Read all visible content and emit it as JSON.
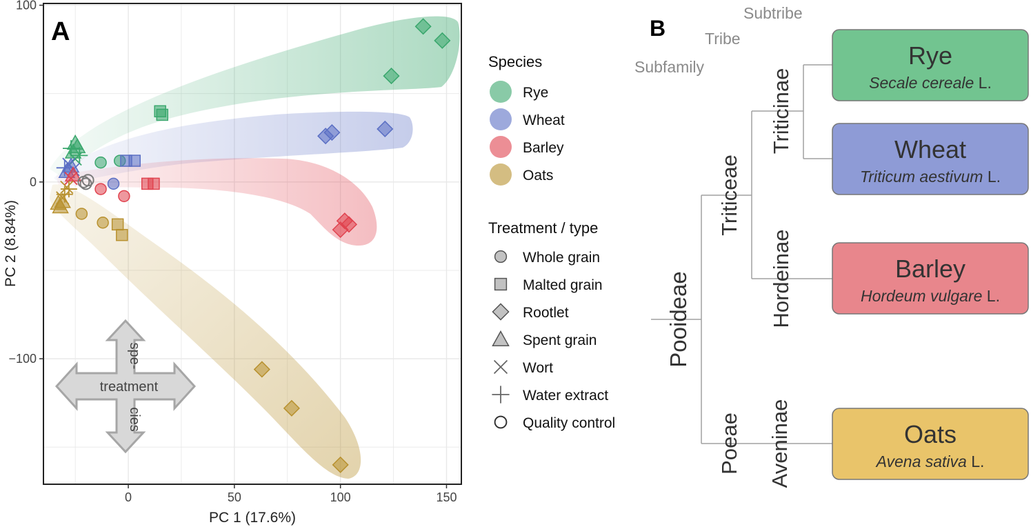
{
  "colors": {
    "rye": "#3aa76d",
    "wheat": "#5b6fc4",
    "barley": "#e0434f",
    "oats": "#b8912f",
    "qc": "#7a7a7a",
    "rye_box": "#72c490",
    "wheat_box": "#8e9bd6",
    "barley_box": "#e8868c",
    "oats_box": "#e9c46a"
  },
  "panel_a": {
    "label": "A",
    "arrow": {
      "top": "spe-",
      "middle": "treatment",
      "bottom": "cies"
    },
    "legend": {
      "species_title": "Species",
      "species": [
        {
          "name": "Rye",
          "color_key": "rye"
        },
        {
          "name": "Wheat",
          "color_key": "wheat"
        },
        {
          "name": "Barley",
          "color_key": "barley"
        },
        {
          "name": "Oats",
          "color_key": "oats"
        }
      ],
      "treatment_title": "Treatment / type",
      "treatments": [
        {
          "name": "Whole grain",
          "shape": "circle"
        },
        {
          "name": "Malted grain",
          "shape": "square"
        },
        {
          "name": "Rootlet",
          "shape": "diamond"
        },
        {
          "name": "Spent grain",
          "shape": "triangle"
        },
        {
          "name": "Wort",
          "shape": "cross"
        },
        {
          "name": "Water extract",
          "shape": "plus"
        },
        {
          "name": "Quality control",
          "shape": "open-circle"
        }
      ]
    }
  },
  "chart_data": {
    "type": "scatter",
    "title": "",
    "xlabel": "PC 1 (17.6%)",
    "ylabel": "PC 2 (8.84%)",
    "xlim": [
      -40,
      157
    ],
    "ylim": [
      -171,
      101
    ],
    "xticks": [
      0,
      50,
      100,
      150
    ],
    "yticks": [
      100,
      0,
      -100
    ],
    "grid": true,
    "legend_position": "right",
    "series": [
      {
        "name": "Rye",
        "color_key": "rye",
        "points": [
          {
            "shape": "diamond",
            "x": 139,
            "y": 88
          },
          {
            "shape": "diamond",
            "x": 148,
            "y": 80
          },
          {
            "shape": "diamond",
            "x": 124,
            "y": 60
          },
          {
            "shape": "square",
            "x": 15,
            "y": 40
          },
          {
            "shape": "square",
            "x": 16,
            "y": 38
          },
          {
            "shape": "circle",
            "x": -13,
            "y": 11
          },
          {
            "shape": "circle",
            "x": -4,
            "y": 12
          },
          {
            "shape": "triangle",
            "x": -25,
            "y": 22
          },
          {
            "shape": "triangle",
            "x": -24,
            "y": 20
          },
          {
            "shape": "triangle",
            "x": -26,
            "y": 17
          },
          {
            "shape": "plus",
            "x": -27,
            "y": 19
          },
          {
            "shape": "plus",
            "x": -23,
            "y": 15
          },
          {
            "shape": "cross",
            "x": -25,
            "y": 13
          }
        ]
      },
      {
        "name": "Wheat",
        "color_key": "wheat",
        "points": [
          {
            "shape": "diamond",
            "x": 121,
            "y": 30
          },
          {
            "shape": "diamond",
            "x": 93,
            "y": 26
          },
          {
            "shape": "diamond",
            "x": 96,
            "y": 28
          },
          {
            "shape": "square",
            "x": 3,
            "y": 12
          },
          {
            "shape": "square",
            "x": -1,
            "y": 12
          },
          {
            "shape": "circle",
            "x": -7,
            "y": -1
          },
          {
            "shape": "triangle",
            "x": -27,
            "y": 9
          },
          {
            "shape": "triangle",
            "x": -29,
            "y": 6
          },
          {
            "shape": "cross",
            "x": -28,
            "y": 10
          },
          {
            "shape": "cross",
            "x": -26,
            "y": 7
          },
          {
            "shape": "plus",
            "x": -30,
            "y": 8
          }
        ]
      },
      {
        "name": "Barley",
        "color_key": "barley",
        "points": [
          {
            "shape": "diamond",
            "x": 104,
            "y": -24
          },
          {
            "shape": "diamond",
            "x": 102,
            "y": -22
          },
          {
            "shape": "diamond",
            "x": 100,
            "y": -27
          },
          {
            "shape": "square",
            "x": 9,
            "y": -1
          },
          {
            "shape": "square",
            "x": 12,
            "y": -1
          },
          {
            "shape": "circle",
            "x": -13,
            "y": -4
          },
          {
            "shape": "circle",
            "x": -2,
            "y": -8
          },
          {
            "shape": "cross",
            "x": -27,
            "y": 2
          },
          {
            "shape": "triangle",
            "x": -26,
            "y": 4
          }
        ]
      },
      {
        "name": "Oats",
        "color_key": "oats",
        "points": [
          {
            "shape": "diamond",
            "x": 63,
            "y": -106
          },
          {
            "shape": "diamond",
            "x": 77,
            "y": -128
          },
          {
            "shape": "diamond",
            "x": 100,
            "y": -160
          },
          {
            "shape": "square",
            "x": -5,
            "y": -24
          },
          {
            "shape": "square",
            "x": -3,
            "y": -30
          },
          {
            "shape": "circle",
            "x": -22,
            "y": -18
          },
          {
            "shape": "circle",
            "x": -12,
            "y": -23
          },
          {
            "shape": "triangle",
            "x": -33,
            "y": -12
          },
          {
            "shape": "triangle",
            "x": -32,
            "y": -14
          },
          {
            "shape": "triangle",
            "x": -31,
            "y": -11
          },
          {
            "shape": "plus",
            "x": -30,
            "y": -7
          },
          {
            "shape": "plus",
            "x": -28,
            "y": -4
          },
          {
            "shape": "cross",
            "x": -31,
            "y": -9
          },
          {
            "shape": "cross",
            "x": -29,
            "y": -3
          }
        ]
      },
      {
        "name": "Quality control",
        "color_key": "qc",
        "points": [
          {
            "shape": "open-circle",
            "x": -20,
            "y": -1
          },
          {
            "shape": "open-circle",
            "x": -19,
            "y": 1
          },
          {
            "shape": "open-circle",
            "x": -21,
            "y": 0
          }
        ]
      }
    ],
    "hulls": [
      {
        "name": "Rye hull",
        "color_key": "rye"
      },
      {
        "name": "Wheat hull",
        "color_key": "wheat"
      },
      {
        "name": "Barley hull",
        "color_key": "barley"
      },
      {
        "name": "Oats hull",
        "color_key": "oats"
      }
    ]
  },
  "panel_b": {
    "label": "B",
    "levels": {
      "subtribe": "Subtribe",
      "tribe": "Tribe",
      "subfamily": "Subfamily"
    },
    "clades": {
      "pooideae": "Pooideae",
      "triticeae": "Triticeae",
      "poeae": "Poeae",
      "triticinae": "Triticinae",
      "hordeinae": "Hordeinae",
      "aveninae": "Aveninae"
    },
    "species": [
      {
        "common": "Rye",
        "genus_species": "Secale cereale",
        "author": "L.",
        "color_key": "rye_box"
      },
      {
        "common": "Wheat",
        "genus_species": "Triticum aestivum",
        "author": "L.",
        "color_key": "wheat_box"
      },
      {
        "common": "Barley",
        "genus_species": "Hordeum vulgare",
        "author": "L.",
        "color_key": "barley_box"
      },
      {
        "common": "Oats",
        "genus_species": "Avena sativa",
        "author": "L.",
        "color_key": "oats_box"
      }
    ]
  }
}
